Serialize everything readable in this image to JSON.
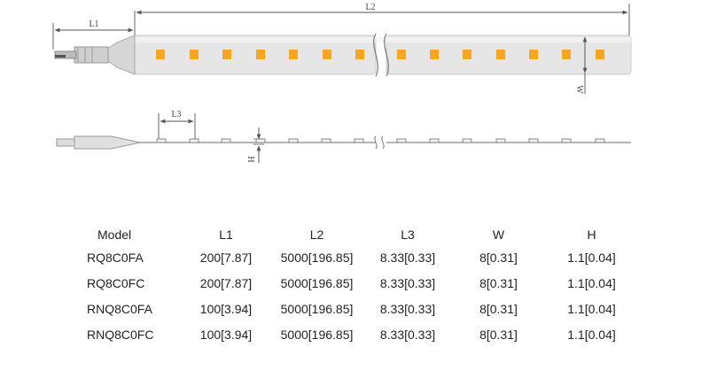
{
  "dimension_labels": {
    "l1": "L1",
    "l2": "L2",
    "l3": "L3",
    "w": "W",
    "h": "H"
  },
  "colors": {
    "led": "#f5a623",
    "strip": "#e4e4e4",
    "line": "#555555"
  },
  "table": {
    "headers": [
      "Model",
      "L1",
      "L2",
      "L3",
      "W",
      "H"
    ],
    "rows": [
      [
        "RQ8C0FA",
        "200[7.87]",
        "5000[196.85]",
        "8.33[0.33]",
        "8[0.31]",
        "1.1[0.04]"
      ],
      [
        "RQ8C0FC",
        "200[7.87]",
        "5000[196.85]",
        "8.33[0.33]",
        "8[0.31]",
        "1.1[0.04]"
      ],
      [
        "RNQ8C0FA",
        "100[3.94]",
        "5000[196.85]",
        "8.33[0.33]",
        "8[0.31]",
        "1.1[0.04]"
      ],
      [
        "RNQ8C0FC",
        "100[3.94]",
        "5000[196.85]",
        "8.33[0.33]",
        "8[0.31]",
        "1.1[0.04]"
      ]
    ]
  }
}
